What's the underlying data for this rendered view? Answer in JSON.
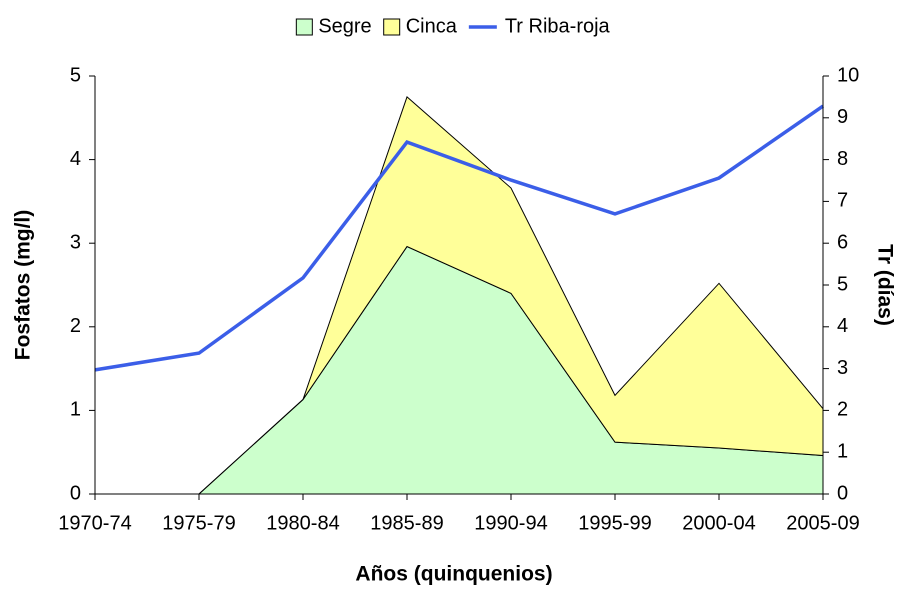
{
  "chart_data": {
    "type": "area",
    "stacked": true,
    "x_label": "Años (quinquenios)",
    "y_label": "Fosfatos (mg/l)",
    "y2_label": "Tr (días)",
    "categories": [
      "1970-74",
      "1975-79",
      "1980-84",
      "1985-89",
      "1990-94",
      "1995-99",
      "2000-04",
      "2005-09"
    ],
    "series": [
      {
        "name": "Segre",
        "type": "area",
        "color": "#ccffcc",
        "values": [
          0,
          0,
          1.13,
          2.96,
          2.4,
          0.62,
          0.55,
          0.46
        ]
      },
      {
        "name": "Cinca",
        "type": "area",
        "color": "#ffff99",
        "values": [
          0,
          0,
          0,
          1.79,
          1.26,
          0.56,
          1.97,
          0.56
        ]
      },
      {
        "name": "Tr Riba-roja",
        "type": "line",
        "axis": "y2",
        "color": "#3b5ee8",
        "values": [
          2.97,
          3.37,
          5.17,
          8.42,
          7.51,
          6.7,
          7.56,
          9.28
        ]
      }
    ],
    "ylim": [
      0,
      5
    ],
    "yticks": [
      0,
      1,
      2,
      3,
      4,
      5
    ],
    "y2lim": [
      0,
      10
    ],
    "y2ticks": [
      0,
      1,
      2,
      3,
      4,
      5,
      6,
      7,
      8,
      9,
      10
    ],
    "grid": false,
    "legend": "top"
  }
}
